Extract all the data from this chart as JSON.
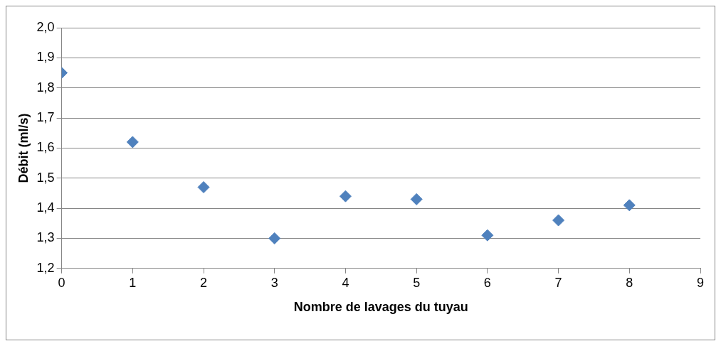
{
  "chart_data": {
    "type": "scatter",
    "xlabel": "Nombre de lavages du tuyau",
    "ylabel": "Débit (ml/s)",
    "x": [
      0,
      1,
      2,
      3,
      4,
      5,
      6,
      7,
      8
    ],
    "series": [
      {
        "color": "#4f81bd",
        "values": [
          1.85,
          1.62,
          1.47,
          1.3,
          1.44,
          1.43,
          1.31,
          1.36,
          1.41
        ]
      }
    ],
    "xlim": [
      0,
      9
    ],
    "xticks": [
      0,
      1,
      2,
      3,
      4,
      5,
      6,
      7,
      8,
      9
    ],
    "ylim": [
      1.2,
      2.0
    ],
    "yticks": [
      {
        "value": 1.2,
        "label": "1,2"
      },
      {
        "value": 1.3,
        "label": "1,3"
      },
      {
        "value": 1.4,
        "label": "1,4"
      },
      {
        "value": 1.5,
        "label": "1,5"
      },
      {
        "value": 1.6,
        "label": "1,6"
      },
      {
        "value": 1.7,
        "label": "1,7"
      },
      {
        "value": 1.8,
        "label": "1,8"
      },
      {
        "value": 1.9,
        "label": "1,9"
      },
      {
        "value": 2.0,
        "label": "2,0"
      }
    ],
    "grid": "y",
    "legend": false,
    "marker": "diamond"
  }
}
